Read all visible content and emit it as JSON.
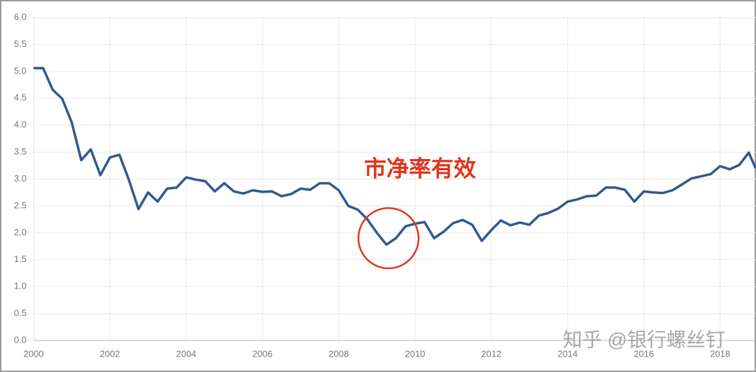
{
  "chart_data": {
    "type": "line",
    "x": [
      2000,
      2000.25,
      2000.5,
      2000.75,
      2001,
      2001.25,
      2001.5,
      2001.75,
      2002,
      2002.25,
      2002.5,
      2002.75,
      2003,
      2003.25,
      2003.5,
      2003.75,
      2004,
      2004.25,
      2004.5,
      2004.75,
      2005,
      2005.25,
      2005.5,
      2005.75,
      2006,
      2006.25,
      2006.5,
      2006.75,
      2007,
      2007.25,
      2007.5,
      2007.75,
      2008,
      2008.25,
      2008.5,
      2008.75,
      2009,
      2009.25,
      2009.5,
      2009.75,
      2010,
      2010.25,
      2010.5,
      2010.75,
      2011,
      2011.25,
      2011.5,
      2011.75,
      2012,
      2012.25,
      2012.5,
      2012.75,
      2013,
      2013.25,
      2013.5,
      2013.75,
      2014,
      2014.25,
      2014.5,
      2014.75,
      2015,
      2015.25,
      2015.5,
      2015.75,
      2016,
      2016.25,
      2016.5,
      2016.75,
      2017,
      2017.25,
      2017.5,
      2017.75,
      2018,
      2018.25,
      2018.5,
      2018.75,
      2018.93
    ],
    "series": [
      {
        "color": "#2f5a8e",
        "values": [
          5.06,
          5.06,
          4.66,
          4.49,
          4.05,
          3.35,
          3.55,
          3.07,
          3.4,
          3.45,
          2.98,
          2.44,
          2.75,
          2.58,
          2.82,
          2.84,
          3.03,
          2.99,
          2.96,
          2.77,
          2.92,
          2.77,
          2.73,
          2.79,
          2.76,
          2.77,
          2.68,
          2.72,
          2.82,
          2.8,
          2.92,
          2.92,
          2.79,
          2.5,
          2.43,
          2.25,
          2.0,
          1.78,
          1.9,
          2.12,
          2.17,
          2.2,
          1.9,
          2.02,
          2.18,
          2.24,
          2.15,
          1.85,
          2.05,
          2.23,
          2.14,
          2.19,
          2.15,
          2.32,
          2.37,
          2.45,
          2.58,
          2.62,
          2.68,
          2.69,
          2.84,
          2.84,
          2.8,
          2.58,
          2.77,
          2.75,
          2.74,
          2.79,
          2.9,
          3.01,
          3.05,
          3.09,
          3.24,
          3.18,
          3.26,
          3.49,
          3.2
        ]
      }
    ],
    "xlim": [
      2000,
      2018.94
    ],
    "xticks": [
      2000,
      2002,
      2004,
      2006,
      2008,
      2010,
      2012,
      2014,
      2016,
      2018
    ],
    "ylim": [
      0,
      6
    ],
    "yticks": [
      {
        "value": 0,
        "label": "0.0"
      },
      {
        "value": 0.5,
        "label": "0.5"
      },
      {
        "value": 1,
        "label": "1.0"
      },
      {
        "value": 1.5,
        "label": "1.5"
      },
      {
        "value": 2,
        "label": "2.0"
      },
      {
        "value": 2.5,
        "label": "2.5"
      },
      {
        "value": 3,
        "label": "3.0"
      },
      {
        "value": 3.5,
        "label": "3.5"
      },
      {
        "value": 4,
        "label": "4.0"
      },
      {
        "value": 4.5,
        "label": "4.5"
      },
      {
        "value": 5,
        "label": "5.0"
      },
      {
        "value": 5.5,
        "label": "5.5"
      },
      {
        "value": 6,
        "label": "6.0"
      }
    ],
    "grid": true,
    "annotation": "市净率有效",
    "watermark": "知乎 @银行螺丝钉"
  }
}
